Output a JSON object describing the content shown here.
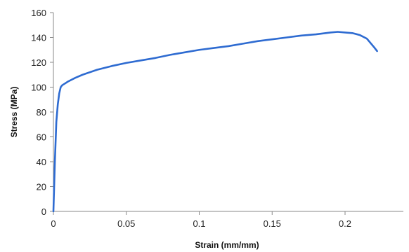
{
  "chart_data": {
    "type": "line",
    "xlabel": "Strain (mm/mm)",
    "ylabel": "Stress (MPa)",
    "xlim": [
      0,
      0.24
    ],
    "ylim": [
      0,
      160
    ],
    "grid": false,
    "legend": "none",
    "x_ticks": [
      "0",
      "0.05",
      "0.1",
      "0.15",
      "0.2"
    ],
    "x_tick_values": [
      0,
      0.05,
      0.1,
      0.15,
      0.2
    ],
    "y_ticks": [
      "0",
      "20",
      "40",
      "60",
      "80",
      "100",
      "120",
      "140",
      "160"
    ],
    "y_tick_values": [
      0,
      20,
      40,
      60,
      80,
      100,
      120,
      140,
      160
    ],
    "series": [
      {
        "color": "#2e6bd1",
        "x": [
          0,
          0.001,
          0.002,
          0.003,
          0.004,
          0.005,
          0.006,
          0.008,
          0.01,
          0.015,
          0.02,
          0.03,
          0.04,
          0.05,
          0.06,
          0.07,
          0.08,
          0.09,
          0.1,
          0.11,
          0.12,
          0.13,
          0.14,
          0.15,
          0.16,
          0.17,
          0.18,
          0.19,
          0.195,
          0.2,
          0.205,
          0.21,
          0.215,
          0.22,
          0.222
        ],
        "y": [
          0,
          40,
          72,
          86,
          95,
          100,
          101.5,
          103,
          104.5,
          107.5,
          110,
          114,
          117,
          119.5,
          121.5,
          123.5,
          126,
          128,
          130,
          131.5,
          133,
          135,
          137,
          138.5,
          140,
          141.5,
          142.5,
          144,
          144.5,
          144,
          143.5,
          142,
          139,
          132,
          129
        ]
      }
    ]
  }
}
